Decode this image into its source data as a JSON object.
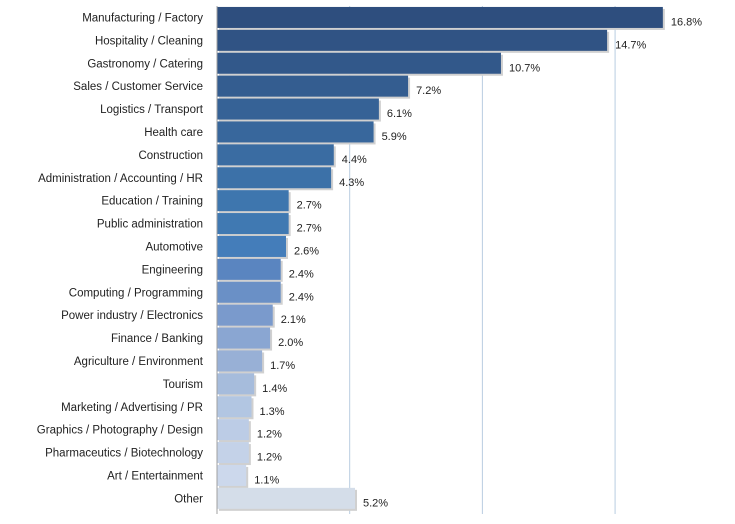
{
  "chart_data": {
    "type": "bar",
    "orientation": "horizontal",
    "grid": true,
    "xlim": [
      0,
      18.2
    ],
    "categories": [
      "Manufacturing / Factory",
      "Hospitality / Cleaning",
      "Gastronomy / Catering",
      "Sales / Customer Service",
      "Logistics / Transport",
      "Health care",
      "Construction",
      "Administration / Accounting / HR",
      "Education / Training",
      "Public administration",
      "Automotive",
      "Engineering",
      "Computing / Programming",
      "Power industry / Electronics",
      "Finance / Banking",
      "Agriculture / Environment",
      "Tourism",
      "Marketing / Advertising / PR",
      "Graphics / Photography / Design",
      "Pharmaceutics / Biotechnology",
      "Art / Entertainment",
      "Other"
    ],
    "values": [
      16.8,
      14.7,
      10.7,
      7.2,
      6.1,
      5.9,
      4.4,
      4.3,
      2.7,
      2.7,
      2.6,
      2.4,
      2.4,
      2.1,
      2.0,
      1.7,
      1.4,
      1.3,
      1.2,
      1.2,
      1.1,
      5.2
    ],
    "value_labels": [
      "16.8%",
      "14.7%",
      "10.7%",
      "7.2%",
      "6.1%",
      "5.9%",
      "4.4%",
      "4.3%",
      "2.7%",
      "2.7%",
      "2.6%",
      "2.4%",
      "2.4%",
      "2.1%",
      "2.0%",
      "1.7%",
      "1.4%",
      "1.3%",
      "1.2%",
      "1.2%",
      "1.1%",
      "5.2%"
    ],
    "bar_colors": [
      "#2e4e7e",
      "#305384",
      "#32588a",
      "#345d90",
      "#366296",
      "#38679c",
      "#3a6ca2",
      "#3c71a8",
      "#3e76ae",
      "#4079b2",
      "#447dba",
      "#5a85c0",
      "#6a90c6",
      "#7a9acc",
      "#8aa6d2",
      "#98b0d6",
      "#a6bcdc",
      "#b2c6e2",
      "#bccce6",
      "#c4d2e8",
      "#ccd8ec",
      "#d4dde9"
    ],
    "gridline_values": [
      5,
      10,
      15
    ],
    "colors": {
      "axis": "#a0a0a0",
      "grid": "#b9cde0",
      "shadow": "#d0d0d0"
    }
  }
}
